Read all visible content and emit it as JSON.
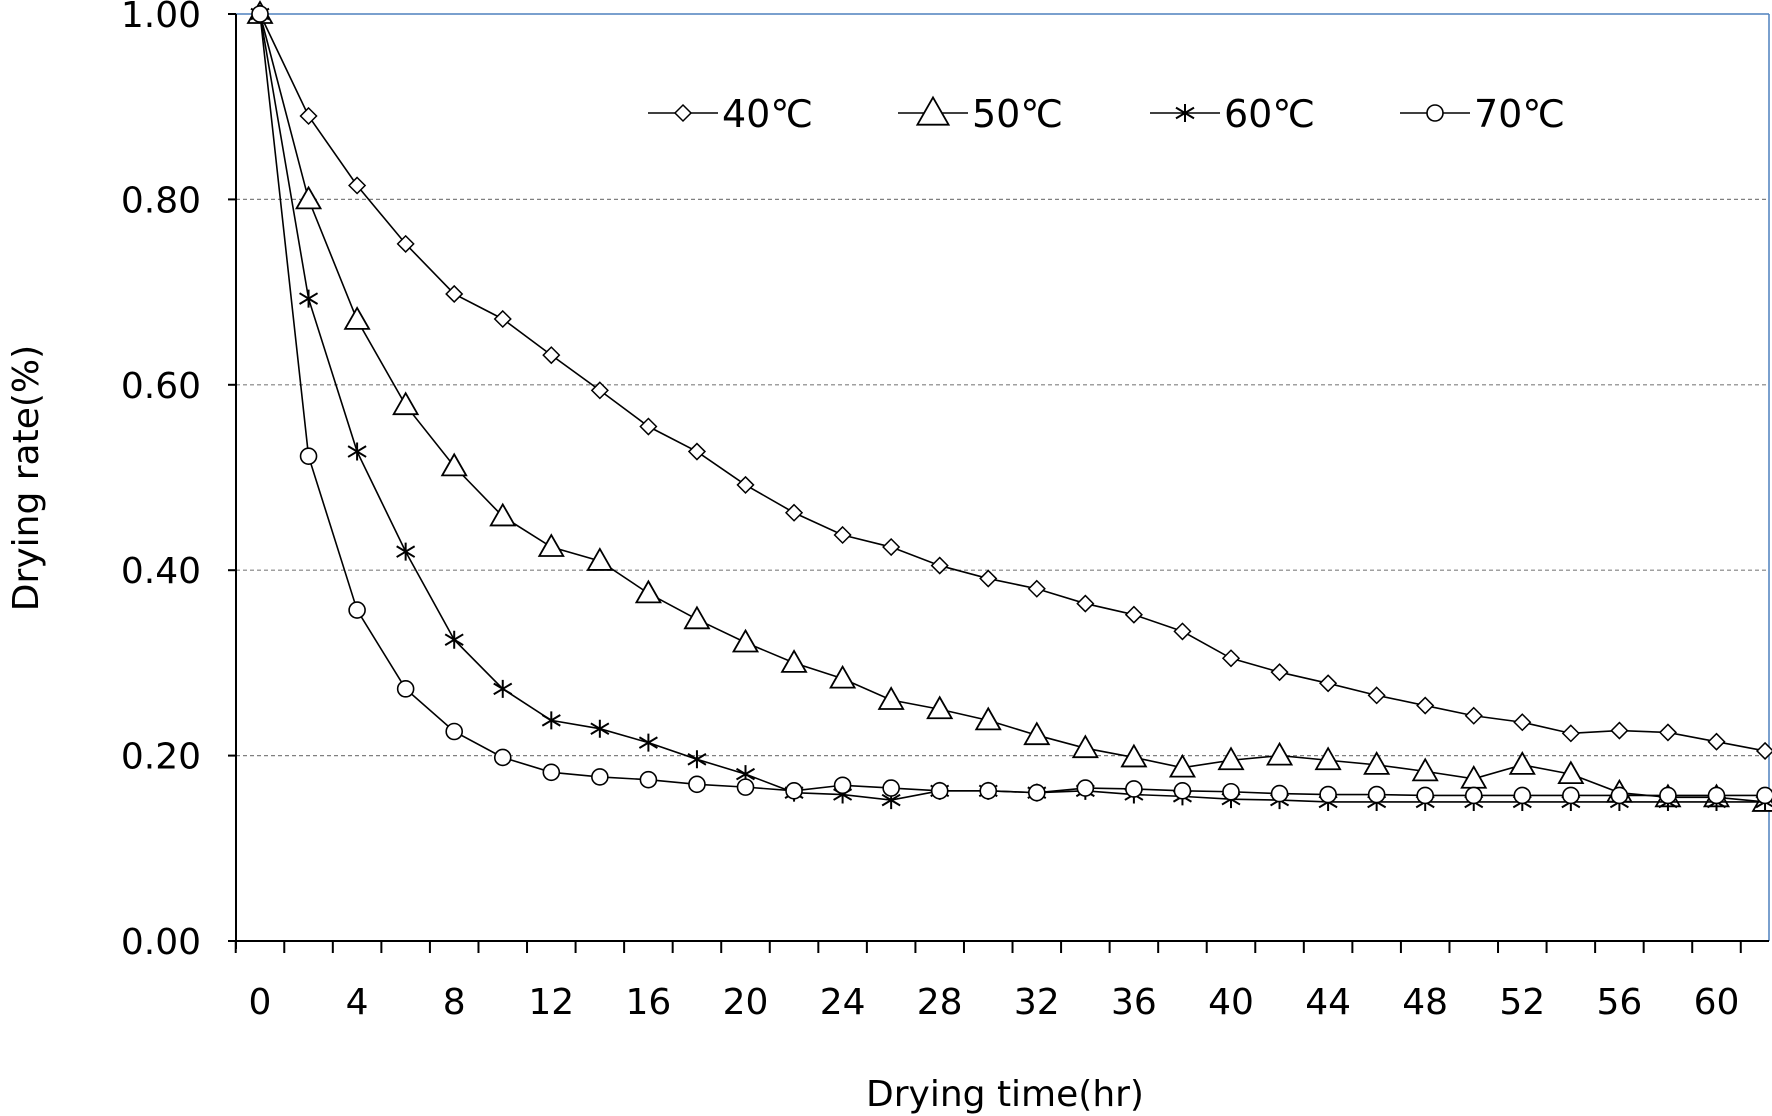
{
  "chart_data": {
    "type": "line",
    "title": "",
    "xlabel": "Drying time(hr)",
    "ylabel": "Drying rate(%)",
    "x": [
      0,
      2,
      4,
      6,
      8,
      10,
      12,
      14,
      16,
      18,
      20,
      22,
      24,
      26,
      28,
      30,
      32,
      34,
      36,
      38,
      40,
      42,
      44,
      46,
      48,
      50,
      52,
      54,
      56,
      58,
      60,
      62
    ],
    "x_tick_labels": [
      "0",
      "4",
      "8",
      "12",
      "16",
      "20",
      "24",
      "28",
      "32",
      "36",
      "40",
      "44",
      "48",
      "52",
      "56",
      "60"
    ],
    "y_tick_labels": [
      "0.00",
      "0.20",
      "0.40",
      "0.60",
      "0.80",
      "1.00"
    ],
    "ylim": [
      0,
      1.0
    ],
    "grid": "horizontal dashed",
    "legend_position": "top",
    "series": [
      {
        "name": "40℃",
        "marker": "diamond",
        "values": [
          1.0,
          0.89,
          0.815,
          0.752,
          0.698,
          0.671,
          0.632,
          0.594,
          0.555,
          0.528,
          0.492,
          0.462,
          0.438,
          0.425,
          0.405,
          0.391,
          0.38,
          0.364,
          0.352,
          0.334,
          0.305,
          0.29,
          0.278,
          0.265,
          0.254,
          0.243,
          0.236,
          0.224,
          0.227,
          0.225,
          0.215,
          0.205
        ]
      },
      {
        "name": "50℃",
        "marker": "triangle",
        "values": [
          1.0,
          0.8,
          0.67,
          0.578,
          0.512,
          0.458,
          0.425,
          0.41,
          0.375,
          0.347,
          0.322,
          0.3,
          0.283,
          0.26,
          0.25,
          0.238,
          0.222,
          0.208,
          0.198,
          0.187,
          0.195,
          0.2,
          0.195,
          0.19,
          0.183,
          0.175,
          0.19,
          0.18,
          0.16,
          0.155,
          0.155,
          0.15
        ]
      },
      {
        "name": "60℃",
        "marker": "asterisk",
        "values": [
          1.0,
          0.693,
          0.528,
          0.42,
          0.325,
          0.272,
          0.238,
          0.229,
          0.214,
          0.196,
          0.18,
          0.16,
          0.158,
          0.152,
          0.162,
          0.162,
          0.16,
          0.162,
          0.158,
          0.156,
          0.153,
          0.152,
          0.15,
          0.15,
          0.15,
          0.15,
          0.15,
          0.15,
          0.15,
          0.15,
          0.15,
          0.15
        ]
      },
      {
        "name": "70℃",
        "marker": "circle",
        "values": [
          1.0,
          0.523,
          0.357,
          0.272,
          0.226,
          0.198,
          0.182,
          0.177,
          0.174,
          0.169,
          0.166,
          0.162,
          0.168,
          0.165,
          0.162,
          0.162,
          0.16,
          0.165,
          0.164,
          0.162,
          0.161,
          0.159,
          0.158,
          0.158,
          0.157,
          0.157,
          0.157,
          0.157,
          0.157,
          0.157,
          0.157,
          0.157
        ]
      }
    ],
    "colors": {
      "line": "#000000",
      "grid": "#808080",
      "frame": "#4f81bd"
    }
  }
}
